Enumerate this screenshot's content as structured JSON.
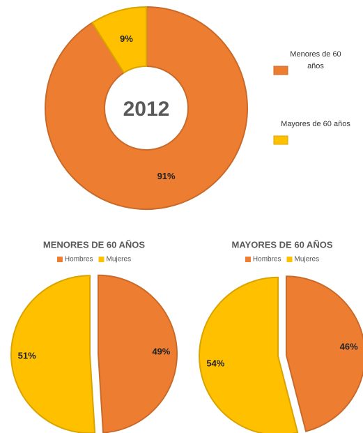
{
  "chart_data": [
    {
      "type": "donut",
      "center_label": "2012",
      "categories": [
        "Menores de 60 años",
        "Mayores de 60 años"
      ],
      "values": [
        91,
        9
      ],
      "value_labels": [
        "91%",
        "9%"
      ],
      "colors": [
        "#ed7d31",
        "#ffc000"
      ],
      "legend": "right"
    },
    {
      "type": "pie",
      "title": "MENORES DE 60 AÑOS",
      "categories": [
        "Hombres",
        "Mujeres"
      ],
      "values": [
        49,
        51
      ],
      "value_labels": [
        "49%",
        "51%"
      ],
      "colors": [
        "#ed7d31",
        "#ffc000"
      ],
      "legend": "top"
    },
    {
      "type": "pie",
      "title": "MAYORES DE 60 AÑOS",
      "categories": [
        "Hombres",
        "Mujeres"
      ],
      "values": [
        46,
        54
      ],
      "value_labels": [
        "46%",
        "54%"
      ],
      "colors": [
        "#ed7d31",
        "#ffc000"
      ],
      "legend": "top"
    }
  ]
}
